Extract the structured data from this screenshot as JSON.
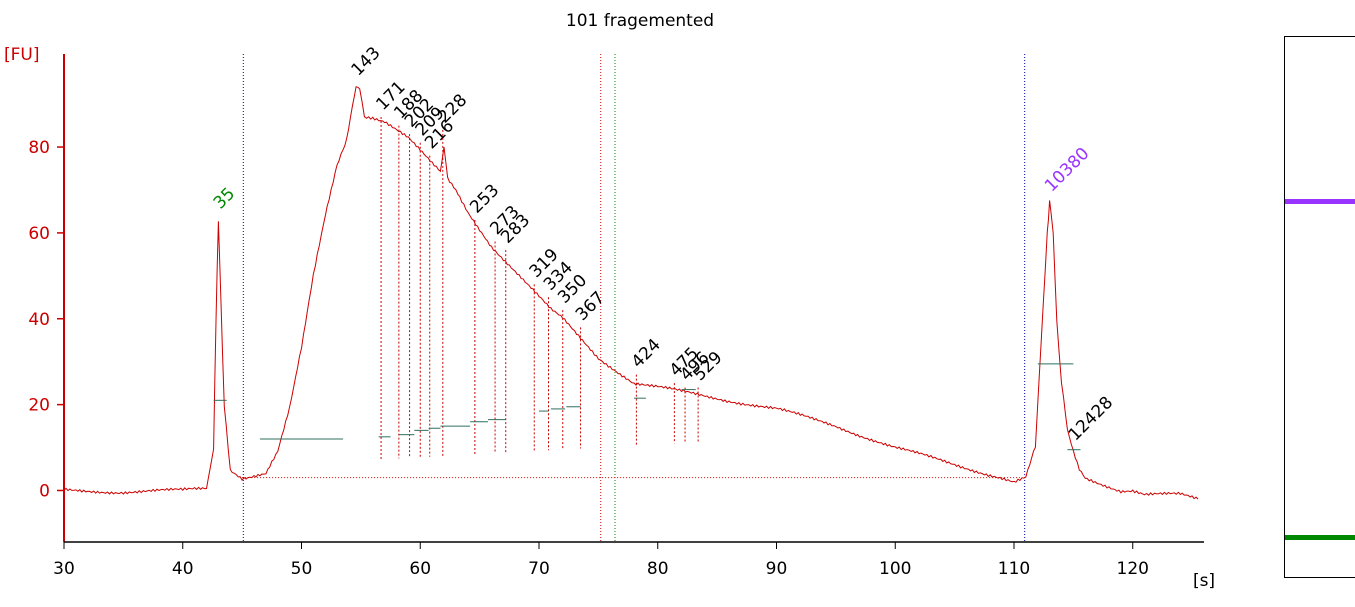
{
  "chart_data": {
    "type": "line",
    "title": "101 fragemented",
    "xlabel": "[s]",
    "ylabel": "[FU]",
    "xlim": [
      30,
      126
    ],
    "ylim": [
      -12,
      104
    ],
    "x_ticks": [
      30,
      40,
      50,
      60,
      70,
      80,
      90,
      100,
      110,
      120
    ],
    "x_tick_labels": [
      "30",
      "40",
      "50",
      "60",
      "70",
      "80",
      "90",
      "100",
      "110",
      "120"
    ],
    "y_ticks": [
      0,
      20,
      40,
      60,
      80
    ],
    "y_tick_labels": [
      "0",
      "20",
      "40",
      "60",
      "80"
    ],
    "colors": {
      "trace": "#cc0000",
      "axis": "#cc0000",
      "lower_marker": "#008800",
      "upper_marker": "#9933ff",
      "region_line": "#0000aa",
      "baseline": "#2f6f5f"
    },
    "series": [
      {
        "x": [
          30,
          35,
          40,
          41,
          42,
          42.6,
          42.8,
          43,
          43.2,
          43.5,
          44,
          45,
          47,
          48,
          49,
          50,
          51,
          52,
          53,
          53.8,
          54.3,
          54.6,
          54.9,
          55.3,
          56,
          57,
          58,
          59,
          60,
          61,
          61.7,
          62,
          62.3,
          63,
          64,
          65,
          66,
          67,
          68,
          69,
          70,
          71,
          72,
          73,
          74,
          75,
          76,
          77,
          78,
          80,
          82,
          84,
          86,
          88,
          90,
          95,
          100,
          105,
          109,
          110,
          111,
          111.8,
          112.3,
          112.8,
          113,
          113.3,
          113.6,
          114,
          114.5,
          115,
          115.5,
          116,
          117,
          118,
          119,
          120,
          121,
          122,
          123,
          124,
          125.5
        ],
        "y": [
          0,
          -0.3,
          0,
          0.3,
          0.5,
          10,
          40,
          63,
          45,
          20,
          5,
          3,
          4,
          9,
          19,
          33,
          50,
          64,
          76,
          82,
          90,
          94,
          93,
          87,
          87,
          86,
          84,
          82,
          79,
          76,
          74,
          80,
          73,
          70,
          65,
          61,
          57,
          54,
          51,
          48,
          45,
          42,
          40,
          37,
          34,
          31,
          29,
          27,
          25,
          24,
          23,
          22,
          21,
          20,
          19,
          15,
          10,
          6,
          3,
          2,
          3,
          10,
          35,
          60,
          67,
          60,
          40,
          25,
          14,
          9,
          5,
          3,
          2,
          1,
          0,
          0,
          -1,
          -1,
          -1,
          -1,
          -2
        ]
      }
    ],
    "peaks": [
      {
        "label": "35",
        "x": 43.0,
        "y": 64,
        "color": "#008800"
      },
      {
        "label": "143",
        "x": 54.6,
        "y": 95
      },
      {
        "label": "171",
        "x": 56.7,
        "y": 87
      },
      {
        "label": "188",
        "x": 58.2,
        "y": 85
      },
      {
        "label": "202",
        "x": 59.1,
        "y": 83
      },
      {
        "label": "209",
        "x": 60.0,
        "y": 81
      },
      {
        "label": "216",
        "x": 60.8,
        "y": 78
      },
      {
        "label": "228",
        "x": 61.9,
        "y": 84
      },
      {
        "label": "253",
        "x": 64.6,
        "y": 63
      },
      {
        "label": "273",
        "x": 66.3,
        "y": 58
      },
      {
        "label": "283",
        "x": 67.2,
        "y": 56
      },
      {
        "label": "319",
        "x": 69.6,
        "y": 48
      },
      {
        "label": "334",
        "x": 70.8,
        "y": 45
      },
      {
        "label": "350",
        "x": 72.0,
        "y": 42
      },
      {
        "label": "367",
        "x": 73.5,
        "y": 38
      },
      {
        "label": "424",
        "x": 78.2,
        "y": 27
      },
      {
        "label": "475",
        "x": 81.4,
        "y": 25
      },
      {
        "label": "496",
        "x": 82.3,
        "y": 24
      },
      {
        "label": "529",
        "x": 83.4,
        "y": 24
      },
      {
        "label": "10380",
        "x": 113.0,
        "y": 68,
        "color": "#9933ff"
      },
      {
        "label": "12428",
        "x": 115.0,
        "y": 10
      }
    ],
    "region_lines": [
      45.1,
      110.9
    ],
    "red_marker": 75.2,
    "green_marker": 76.4
  }
}
